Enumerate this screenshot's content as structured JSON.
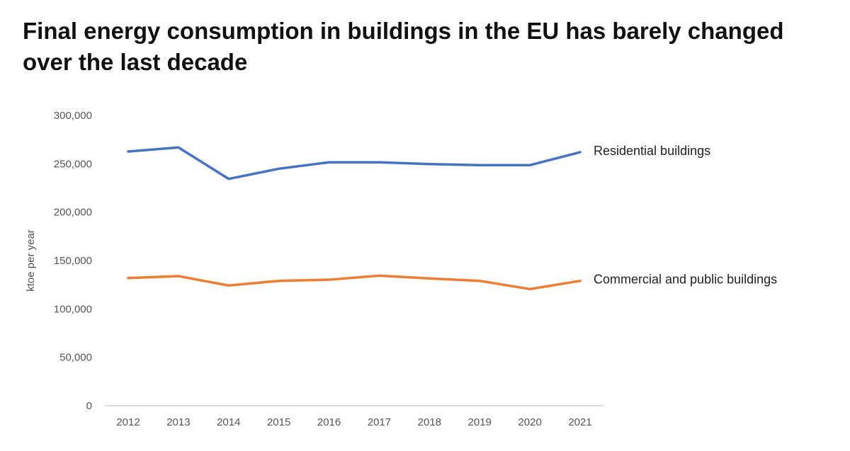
{
  "chart_data": {
    "type": "line",
    "title": "Final energy consumption in buildings in the EU has barely changed over the last decade",
    "xlabel": "",
    "ylabel": "ktoe per year",
    "x": [
      "2012",
      "2013",
      "2014",
      "2015",
      "2016",
      "2017",
      "2018",
      "2019",
      "2020",
      "2021"
    ],
    "ylim": [
      0,
      300000
    ],
    "yticks": [
      0,
      50000,
      100000,
      150000,
      200000,
      250000,
      300000
    ],
    "ytick_labels": [
      "0",
      "50,000",
      "100,000",
      "150,000",
      "200,000",
      "250,000",
      "300,000"
    ],
    "grid": false,
    "legend": "end-of-line labels",
    "series": [
      {
        "name": "Residential buildings",
        "color": "#4472C4",
        "values": [
          262700,
          266900,
          234400,
          244900,
          251500,
          251500,
          249700,
          248600,
          248600,
          262000
        ]
      },
      {
        "name": "Commercial and public buildings",
        "color": "#ED7D31",
        "values": [
          131900,
          133900,
          124200,
          129000,
          130200,
          134400,
          131500,
          129000,
          120500,
          129000
        ]
      }
    ]
  }
}
